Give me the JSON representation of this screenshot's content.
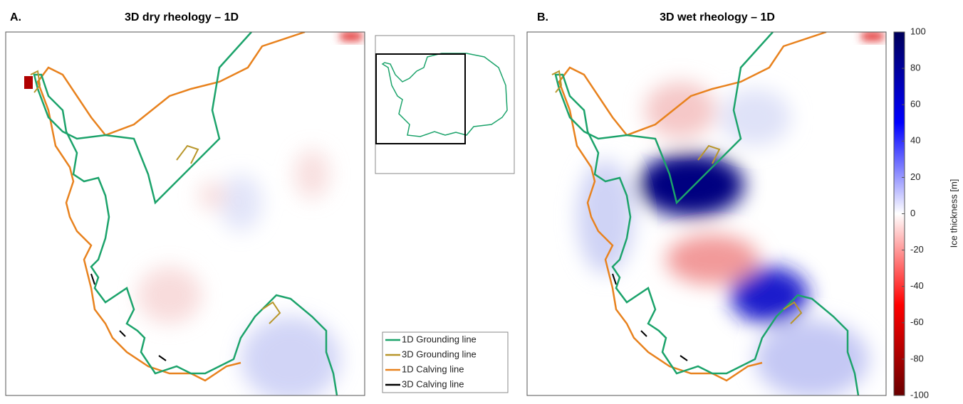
{
  "panels": [
    {
      "letter": "A.",
      "title": "3D dry rheology – 1D"
    },
    {
      "letter": "B.",
      "title": "3D wet rheology – 1D"
    }
  ],
  "legend": {
    "items": [
      {
        "label": "1D Grounding line",
        "color": "#1ca36b"
      },
      {
        "label": "3D Grounding line",
        "color": "#b8962a"
      },
      {
        "label": "1D Calving line",
        "color": "#e8821e"
      },
      {
        "label": "3D Calving line",
        "color": "#000000"
      }
    ]
  },
  "colorbar": {
    "label": "Ice thickness [m]",
    "lim": [
      -100,
      100
    ],
    "ticks": [
      100,
      80,
      60,
      40,
      20,
      0,
      -20,
      -40,
      -60,
      -80,
      -100
    ]
  }
}
